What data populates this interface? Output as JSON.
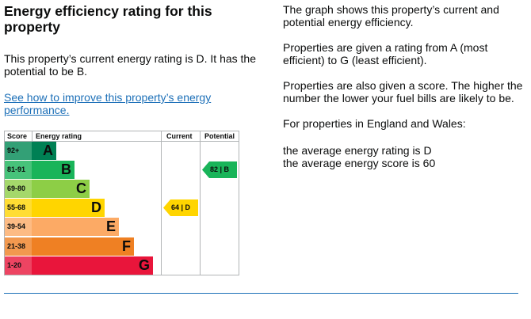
{
  "heading": "Energy efficiency rating for this property",
  "current_text": "This property’s current energy rating is D. It has the potential to be B.",
  "improve_link": "See how to improve this property’s energy performance.",
  "info": {
    "p1": "The graph shows this property’s current and potential energy efficiency.",
    "p2": "Properties are given a rating from A (most efficient) to G (least efficient).",
    "p3": "Properties are also given a score. The higher the number the lower your fuel bills are likely to be.",
    "p4": "For properties in England and Wales:",
    "p5a": "the average energy rating is D",
    "p5b": "the average energy score is 60"
  },
  "chart": {
    "headers": {
      "score": "Score",
      "rating": "Energy rating",
      "current": "Current",
      "potential": "Potential"
    },
    "bands": [
      {
        "range": "92+",
        "letter": "A",
        "color": "#008054",
        "score_bg": "#33a076",
        "fraction": 0.2
      },
      {
        "range": "81-91",
        "letter": "B",
        "color": "#19b459",
        "score_bg": "#47c37a",
        "fraction": 0.35
      },
      {
        "range": "69-80",
        "letter": "C",
        "color": "#8dce46",
        "score_bg": "#a4d86b",
        "fraction": 0.48
      },
      {
        "range": "55-68",
        "letter": "D",
        "color": "#ffd500",
        "score_bg": "#ffdd33",
        "fraction": 0.6
      },
      {
        "range": "39-54",
        "letter": "E",
        "color": "#fcaa65",
        "score_bg": "#fdbb84",
        "fraction": 0.72
      },
      {
        "range": "21-38",
        "letter": "F",
        "color": "#ef8023",
        "score_bg": "#f2994f",
        "fraction": 0.84
      },
      {
        "range": "1-20",
        "letter": "G",
        "color": "#e9153b",
        "score_bg": "#ed4462",
        "fraction": 1.0
      }
    ],
    "current": {
      "label": "64 | D",
      "band_index": 3,
      "color": "#ffd500"
    },
    "potential": {
      "label": "82 | B",
      "band_index": 1,
      "color": "#19b459"
    }
  }
}
